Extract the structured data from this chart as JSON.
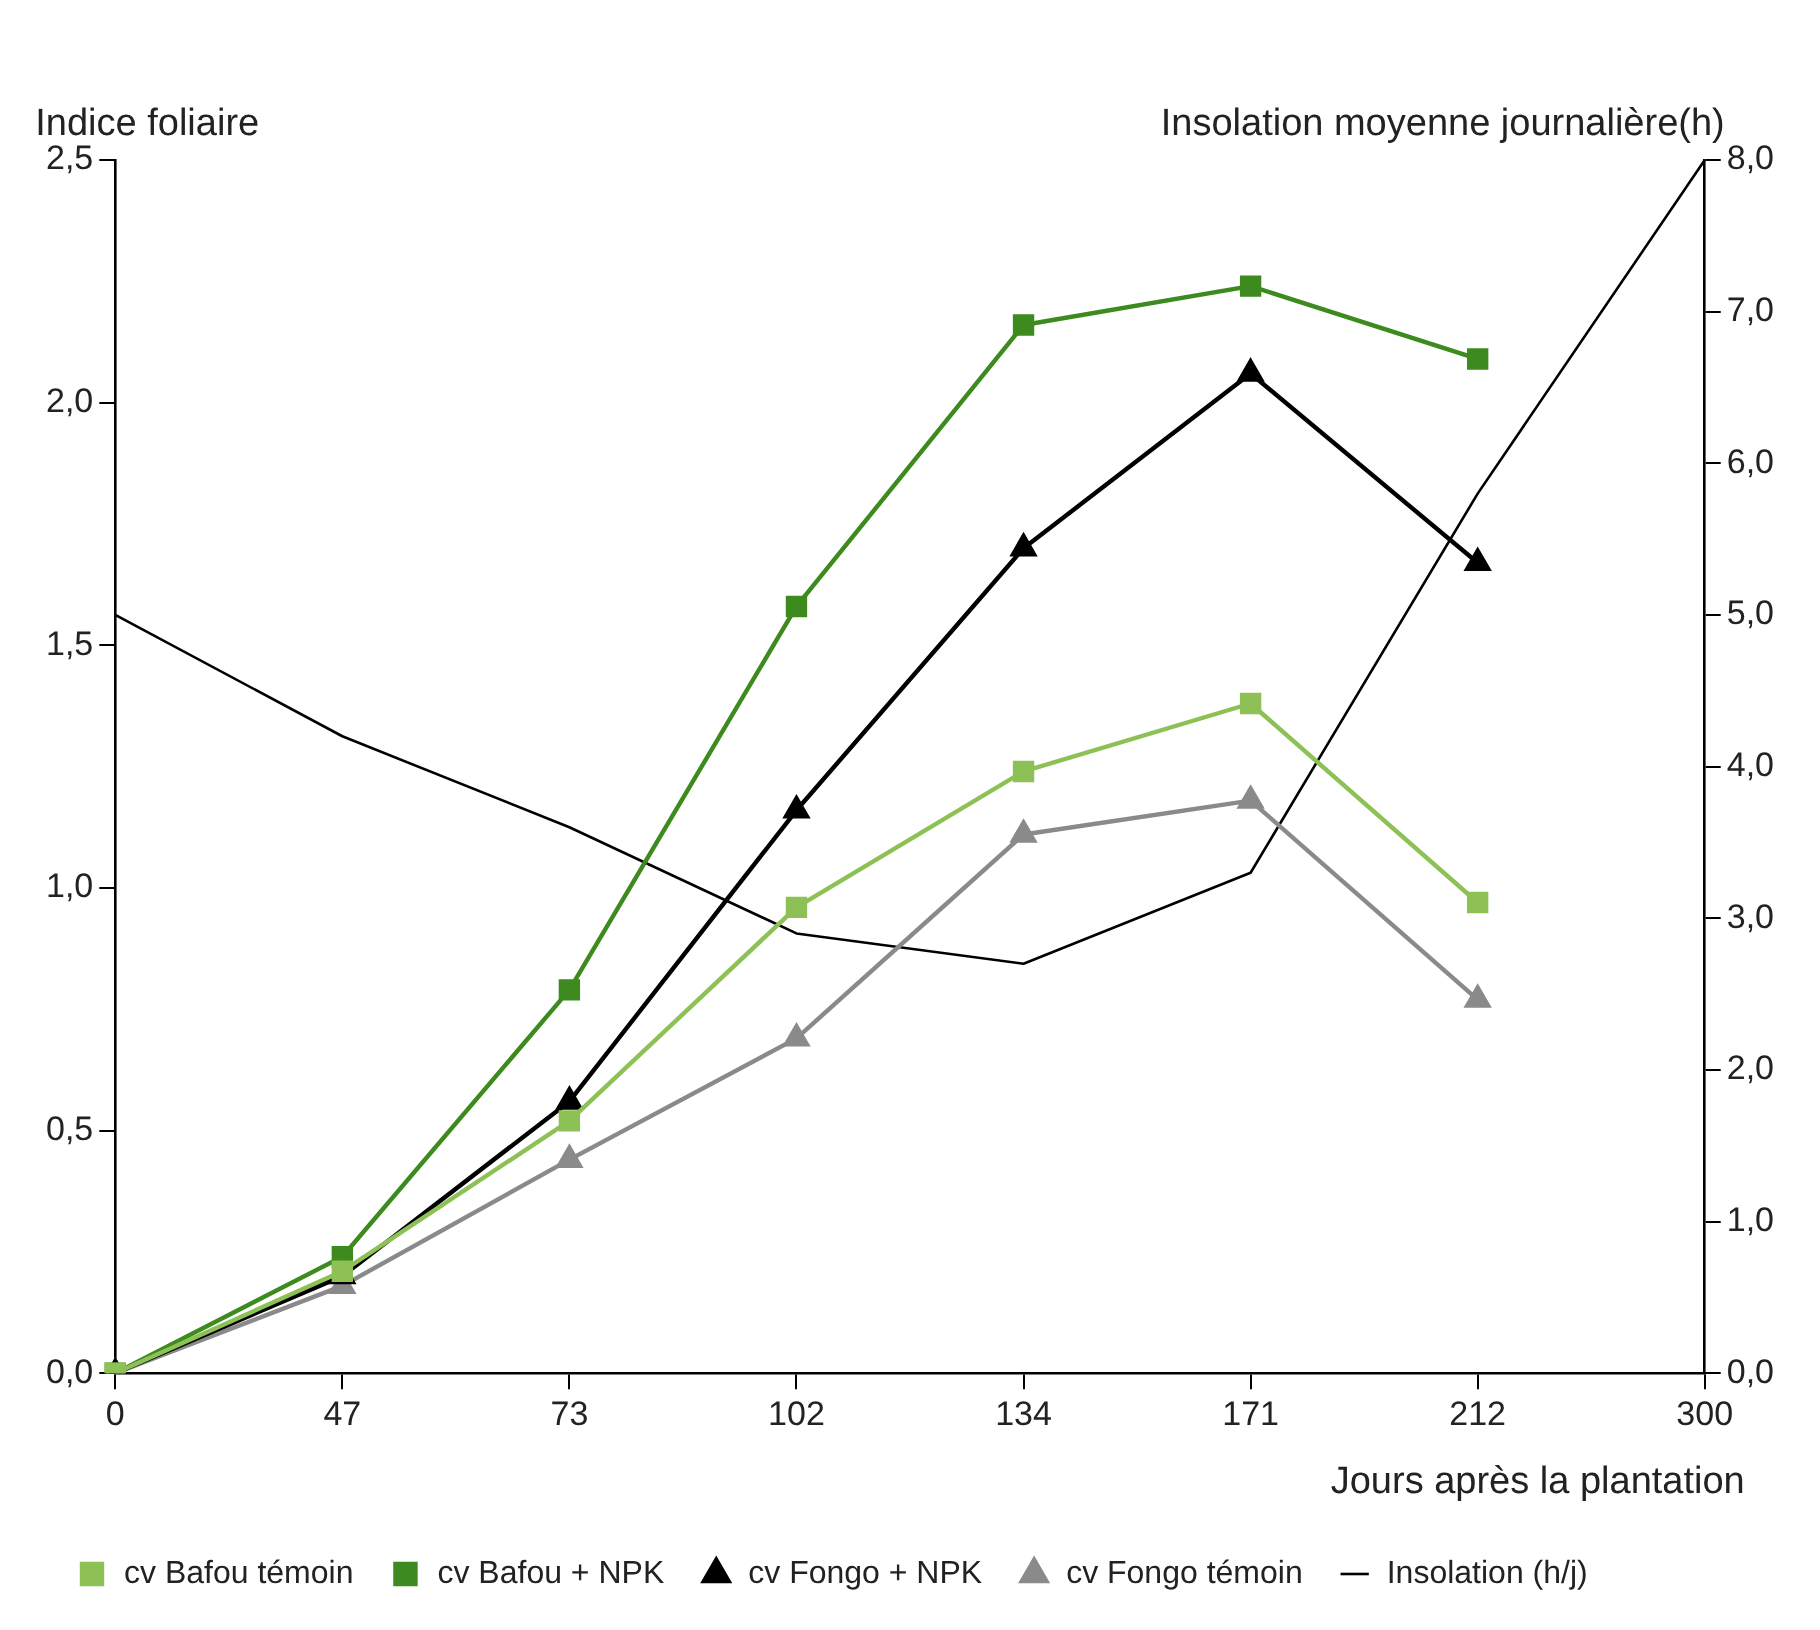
{
  "chart_data": {
    "type": "line",
    "xlabel": "Jours après la plantation",
    "ylabel": "Indice foliaire",
    "y2label": "Insolation moyenne journalière(h)",
    "categories": [
      "0",
      "47",
      "73",
      "102",
      "134",
      "171",
      "212",
      "300"
    ],
    "series": [
      {
        "name": "cv Bafou témoin",
        "color": "#8dc055",
        "marker": "square",
        "values": [
          0,
          0.21,
          0.52,
          0.96,
          1.24,
          1.38,
          0.97,
          null
        ]
      },
      {
        "name": "cv Bafou + NPK",
        "color": "#3d8a1e",
        "marker": "square",
        "values": [
          0,
          0.24,
          0.79,
          1.58,
          2.16,
          2.24,
          2.09,
          null
        ]
      },
      {
        "name": "cv Fongo + NPK",
        "color": "#000000",
        "marker": "triangle",
        "values": [
          0,
          0.2,
          0.56,
          1.16,
          1.7,
          2.06,
          1.67,
          null
        ]
      },
      {
        "name": "cv Fongo témoin",
        "color": "#8a8a8a",
        "marker": "triangle",
        "values": [
          0,
          0.18,
          0.44,
          0.69,
          1.11,
          1.18,
          0.77,
          null
        ]
      },
      {
        "name": "Insolation (h/j)",
        "color": "#000000",
        "marker": "none",
        "axis": "y2",
        "values": [
          5.0,
          4.2,
          3.6,
          2.9,
          2.7,
          3.3,
          5.8,
          8.0
        ]
      }
    ],
    "ylim": [
      0,
      2.5
    ],
    "yticks": [
      {
        "value": 0,
        "label": "0,0"
      },
      {
        "value": 0.5,
        "label": "0,5"
      },
      {
        "value": 1,
        "label": "1,0"
      },
      {
        "value": 1.5,
        "label": "1,5"
      },
      {
        "value": 2,
        "label": "2,0"
      },
      {
        "value": 2.5,
        "label": "2,5"
      }
    ],
    "y2lim": [
      0,
      8
    ],
    "y2ticks": [
      {
        "value": 0,
        "label": "0,0"
      },
      {
        "value": 1,
        "label": "1,0"
      },
      {
        "value": 2,
        "label": "2,0"
      },
      {
        "value": 3,
        "label": "3,0"
      },
      {
        "value": 4,
        "label": "4,0"
      },
      {
        "value": 5,
        "label": "5,0"
      },
      {
        "value": 6,
        "label": "6,0"
      },
      {
        "value": 7,
        "label": "7,0"
      },
      {
        "value": 8,
        "label": "8,0"
      }
    ],
    "grid": false,
    "legend": "bottom"
  }
}
